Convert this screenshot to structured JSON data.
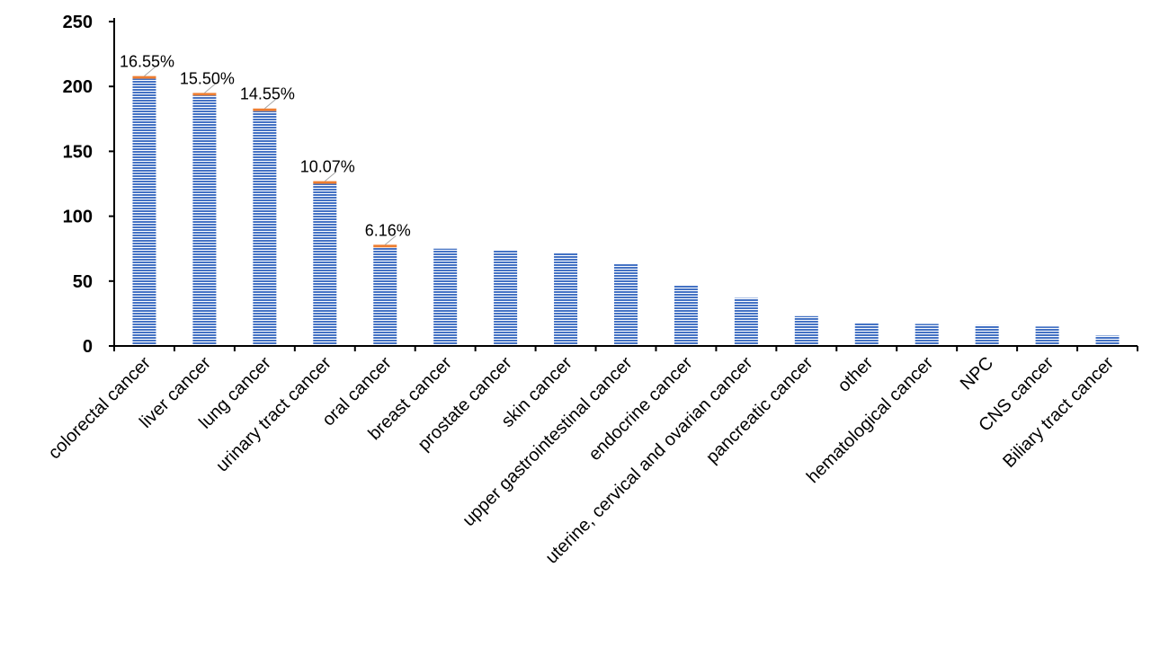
{
  "chart_data": {
    "type": "bar",
    "title": "",
    "xlabel": "",
    "ylabel": "",
    "ylim": [
      0,
      250
    ],
    "yticks": [
      0,
      50,
      100,
      150,
      200,
      250
    ],
    "grid": false,
    "legend": "none",
    "categories": [
      "colorectal cancer",
      "liver cancer",
      "lung cancer",
      "urinary tract cancer",
      "oral cancer",
      "breast cancer",
      "prostate cancer",
      "skin cancer",
      "upper gastrointestinal cancer",
      "endocrine cancer",
      "uterine, cervical and ovarian cancer",
      "pancreatic cancer",
      "other",
      "hematological cancer",
      "NPC",
      "CNS cancer",
      "Biliary tract cancer"
    ],
    "series": [
      {
        "values": [
          206,
          193,
          181,
          125,
          76,
          75,
          74,
          72,
          63,
          47,
          37,
          23,
          18,
          17,
          16,
          15,
          8
        ],
        "color": "#4472c4"
      },
      {
        "values": [
          2,
          2,
          2,
          2,
          2,
          0,
          0,
          0,
          0,
          0,
          0,
          0,
          0,
          0,
          0,
          0,
          0
        ],
        "color": "#ed7d31"
      }
    ],
    "data_labels": [
      "16.55%",
      "15.50%",
      "14.55%",
      "10.07%",
      "6.16%",
      "",
      "",
      "",
      "",
      "",
      "",
      "",
      "",
      "",
      "",
      "",
      ""
    ]
  }
}
